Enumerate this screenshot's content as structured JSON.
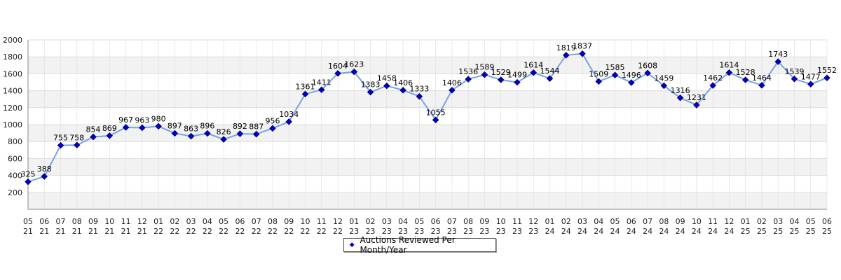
{
  "chart_data": {
    "type": "line",
    "categories": [
      [
        "05",
        "21"
      ],
      [
        "06",
        "21"
      ],
      [
        "07",
        "21"
      ],
      [
        "08",
        "21"
      ],
      [
        "09",
        "21"
      ],
      [
        "10",
        "21"
      ],
      [
        "11",
        "21"
      ],
      [
        "12",
        "21"
      ],
      [
        "01",
        "22"
      ],
      [
        "02",
        "22"
      ],
      [
        "03",
        "22"
      ],
      [
        "04",
        "22"
      ],
      [
        "05",
        "22"
      ],
      [
        "06",
        "22"
      ],
      [
        "07",
        "22"
      ],
      [
        "08",
        "22"
      ],
      [
        "09",
        "22"
      ],
      [
        "10",
        "22"
      ],
      [
        "11",
        "22"
      ],
      [
        "12",
        "22"
      ],
      [
        "01",
        "23"
      ],
      [
        "02",
        "23"
      ],
      [
        "03",
        "23"
      ],
      [
        "04",
        "23"
      ],
      [
        "05",
        "23"
      ],
      [
        "06",
        "23"
      ],
      [
        "07",
        "23"
      ],
      [
        "08",
        "23"
      ],
      [
        "09",
        "23"
      ],
      [
        "10",
        "23"
      ],
      [
        "11",
        "23"
      ],
      [
        "12",
        "23"
      ],
      [
        "01",
        "24"
      ],
      [
        "02",
        "24"
      ],
      [
        "03",
        "24"
      ],
      [
        "04",
        "24"
      ],
      [
        "05",
        "24"
      ],
      [
        "06",
        "24"
      ],
      [
        "07",
        "24"
      ],
      [
        "08",
        "24"
      ],
      [
        "09",
        "24"
      ],
      [
        "10",
        "24"
      ],
      [
        "11",
        "24"
      ],
      [
        "12",
        "24"
      ],
      [
        "01",
        "25"
      ],
      [
        "02",
        "25"
      ],
      [
        "03",
        "25"
      ],
      [
        "04",
        "25"
      ],
      [
        "05",
        "25"
      ],
      [
        "06",
        "25"
      ]
    ],
    "series": [
      {
        "name": "Auctions Reviewed Per Month/Year",
        "values": [
          325,
          388,
          755,
          758,
          854,
          869,
          967,
          963,
          980,
          897,
          863,
          896,
          826,
          892,
          887,
          956,
          1034,
          1361,
          1411,
          1604,
          1623,
          1383,
          1458,
          1406,
          1333,
          1055,
          1406,
          1536,
          1589,
          1529,
          1499,
          1614,
          1544,
          1819,
          1837,
          1509,
          1585,
          1496,
          1608,
          1459,
          1316,
          1231,
          1462,
          1614,
          1528,
          1464,
          1743,
          1539,
          1477,
          1552
        ]
      }
    ],
    "yticks": [
      200,
      400,
      600,
      800,
      1000,
      1200,
      1400,
      1600,
      1800,
      2000
    ],
    "ylim": [
      0,
      2000
    ],
    "grid": true,
    "legend_position": "bottom-center",
    "colors": {
      "line": "#7aa0e6",
      "marker": "#0000cc",
      "band": "#f2f2f2",
      "grid": "#dddddd",
      "axis": "#888888"
    }
  }
}
